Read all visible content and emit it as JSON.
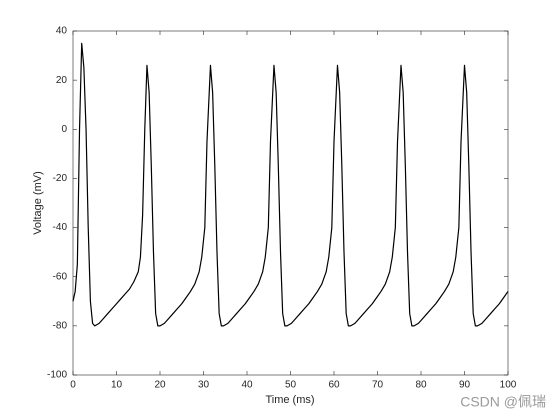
{
  "chart_data": {
    "type": "line",
    "xlabel": "Time (ms)",
    "ylabel": "Voltage (mV)",
    "watermark": "CSDN @佩瑞",
    "color": "#000000",
    "xlim": [
      0,
      100
    ],
    "xticks": [
      0,
      10,
      20,
      30,
      40,
      50,
      60,
      70,
      80,
      90,
      100
    ],
    "ylim": [
      -100,
      40
    ],
    "yticks": [
      -100,
      -80,
      -60,
      -40,
      -20,
      0,
      20,
      40
    ],
    "x": [
      0,
      0.5,
      1,
      1.5,
      2,
      2.5,
      3,
      3.5,
      4,
      4.5,
      5,
      6,
      7,
      8,
      9,
      10,
      11,
      12,
      13,
      14,
      15,
      15.5,
      16,
      16.5,
      17,
      17.5,
      18,
      18.5,
      19,
      19.5,
      20,
      21,
      22,
      23,
      24,
      25,
      26,
      27,
      28,
      29,
      29.6,
      30.3,
      30.8,
      31.6,
      32.1,
      32.6,
      33.1,
      33.6,
      34.1,
      34.6,
      35.6,
      36.6,
      37.6,
      38.6,
      39.6,
      40.6,
      41.6,
      42.6,
      43.6,
      44.2,
      44.9,
      45.4,
      46.2,
      46.7,
      47.2,
      47.7,
      48.2,
      48.7,
      49.2,
      50.2,
      51.2,
      52.2,
      53.2,
      54.2,
      55.2,
      56.2,
      57.2,
      58.2,
      58.8,
      59.5,
      60.0,
      60.8,
      61.3,
      61.8,
      62.3,
      62.8,
      63.3,
      63.8,
      64.8,
      65.8,
      66.8,
      67.8,
      68.8,
      69.8,
      70.8,
      71.8,
      72.8,
      73.4,
      74.1,
      74.6,
      75.4,
      75.9,
      76.4,
      76.9,
      77.4,
      77.9,
      78.4,
      79.4,
      80.4,
      81.4,
      82.4,
      83.4,
      84.4,
      85.4,
      86.4,
      87.4,
      88.0,
      88.7,
      89.2,
      90.0,
      90.5,
      91,
      91.5,
      92,
      92.5,
      93,
      94,
      95,
      96,
      97,
      98,
      99,
      100
    ],
    "y": [
      -70,
      -66,
      -55,
      0,
      35,
      25,
      0,
      -40,
      -70,
      -79,
      -80,
      -79,
      -77,
      -75,
      -73,
      -71,
      -69,
      -67,
      -65,
      -62,
      -58,
      -52,
      -35,
      0,
      26,
      15,
      -15,
      -50,
      -75,
      -80,
      -80,
      -79,
      -77,
      -75,
      -73,
      -71,
      -68.5,
      -66,
      -63,
      -58,
      -52,
      -40,
      -5,
      26,
      15,
      -15,
      -50,
      -75,
      -80,
      -80,
      -79,
      -77,
      -75,
      -73,
      -71,
      -68.5,
      -66,
      -63,
      -58,
      -52,
      -40,
      -5,
      26,
      15,
      -15,
      -50,
      -75,
      -80,
      -80,
      -79,
      -77,
      -75,
      -73,
      -71,
      -68.5,
      -66,
      -63,
      -58,
      -52,
      -40,
      -5,
      26,
      15,
      -15,
      -50,
      -75,
      -80,
      -80,
      -79,
      -77,
      -75,
      -73,
      -71,
      -68.5,
      -66,
      -63,
      -58,
      -52,
      -40,
      -5,
      26,
      15,
      -15,
      -50,
      -75,
      -80,
      -80,
      -79,
      -77,
      -75,
      -73,
      -71,
      -68.5,
      -66,
      -63,
      -58,
      -52,
      -40,
      -5,
      26,
      15,
      -15,
      -50,
      -75,
      -80,
      -80,
      -79,
      -77,
      -75,
      -73,
      -71,
      -68.5,
      -66
    ]
  }
}
